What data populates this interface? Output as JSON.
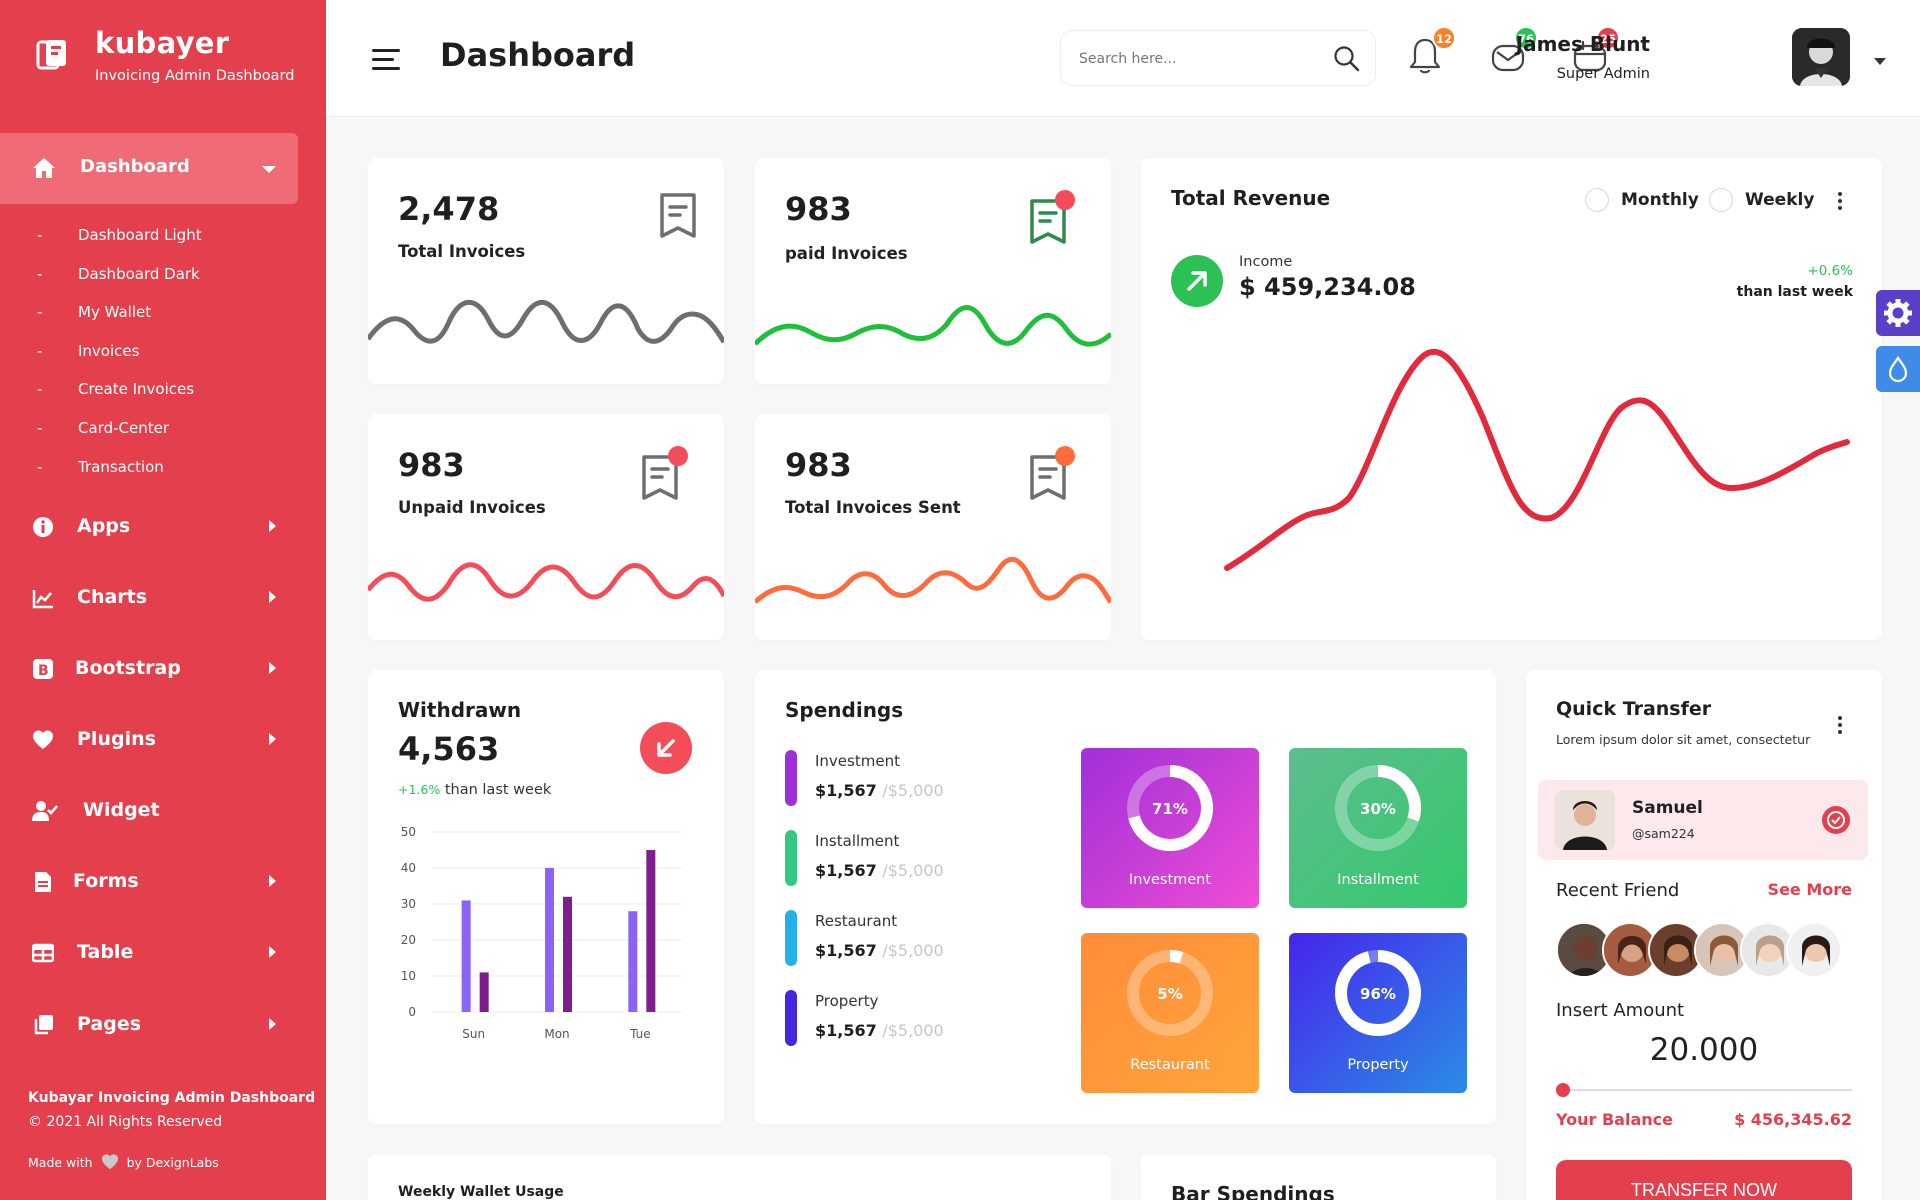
{
  "brand": {
    "name": "kubayer",
    "tagline": "Invoicing Admin Dashboard"
  },
  "sidebar": {
    "active": {
      "label": "Dashboard",
      "icon": "home-icon"
    },
    "subitems": [
      "Dashboard Light",
      "Dashboard Dark",
      "My Wallet",
      "Invoices",
      "Create Invoices",
      "Card-Center",
      "Transaction"
    ],
    "items": [
      {
        "label": "Apps",
        "icon": "info-icon"
      },
      {
        "label": "Charts",
        "icon": "line-chart-icon"
      },
      {
        "label": "Bootstrap",
        "icon": "bootstrap-icon"
      },
      {
        "label": "Plugins",
        "icon": "heart-icon"
      },
      {
        "label": "Widget",
        "icon": "user-check-icon"
      },
      {
        "label": "Forms",
        "icon": "file-icon"
      },
      {
        "label": "Table",
        "icon": "table-icon"
      },
      {
        "label": "Pages",
        "icon": "copy-icon"
      }
    ],
    "footer": {
      "title": "Kubayar Invoicing Admin Dashboard",
      "copyright": "© 2021 All Rights Reserved",
      "made_with": "Made with",
      "by": "by DexignLabs"
    }
  },
  "header": {
    "title": "Dashboard",
    "search_placeholder": "Search here...",
    "notifications": {
      "bell": "12",
      "mail": "76",
      "calendar": "25"
    },
    "badge_colors": {
      "bell": "#fe8024",
      "mail": "#2bc155",
      "calendar": "#e43f4c"
    },
    "user": {
      "name": "James Blunt",
      "role": "Super Admin"
    }
  },
  "stats": [
    {
      "value": "2,478",
      "label": "Total Invoices",
      "color": "#6e6e6e"
    },
    {
      "value": "983",
      "label": "paid Invoices",
      "color": "#2bc155"
    },
    {
      "value": "983",
      "label": "Unpaid Invoices",
      "color": "#f24d58"
    },
    {
      "value": "983",
      "label": "Total Invoices Sent",
      "color": "#fe6b3d"
    }
  ],
  "revenue": {
    "title": "Total Revenue",
    "options": [
      "Monthly",
      "Weekly"
    ],
    "income_label": "Income",
    "income_value": "$ 459,234.08",
    "change": "+0.6%",
    "change_label": "than last week"
  },
  "withdrawn": {
    "title": "Withdrawn",
    "value": "4,563",
    "change": "+1.6%",
    "change_label": " than last week"
  },
  "chart_data": {
    "type": "bar",
    "categories": [
      "Sun",
      "Mon",
      "Tue"
    ],
    "series": [
      {
        "values": [
          31,
          40,
          28
        ],
        "color": "#8b63f6"
      },
      {
        "values": [
          11,
          32,
          45
        ],
        "color": "#7c1e8c"
      }
    ],
    "y_ticks": [
      0,
      10,
      20,
      30,
      40,
      50
    ],
    "ylim": [
      0,
      50
    ],
    "grid": true
  },
  "spendings": {
    "title": "Spendings",
    "items": [
      {
        "name": "Investment",
        "amount": "$1,567",
        "total": "/$5,000",
        "color": "#9f30d9"
      },
      {
        "name": "Installment",
        "amount": "$1,567",
        "total": "/$5,000",
        "color": "#33c985"
      },
      {
        "name": "Restaurant",
        "amount": "$1,567",
        "total": "/$5,000",
        "color": "#22b2e8"
      },
      {
        "name": "Property",
        "amount": "$1,567",
        "total": "/$5,000",
        "color": "#4328e0"
      }
    ],
    "tiles": [
      {
        "pct": "71%",
        "fraction": 0.71,
        "label": "Investment",
        "grad": [
          "#9f30d9",
          "#f04dd4"
        ]
      },
      {
        "pct": "30%",
        "fraction": 0.3,
        "label": "Installment",
        "grad": [
          "#5dbd8f",
          "#33c96b"
        ]
      },
      {
        "pct": "5%",
        "fraction": 0.05,
        "label": "Restaurant",
        "grad": [
          "#ff8c3a",
          "#ffa53a"
        ]
      },
      {
        "pct": "96%",
        "fraction": 0.96,
        "label": "Property",
        "grad": [
          "#4725ec",
          "#2a8ce6"
        ]
      }
    ]
  },
  "quick_transfer": {
    "title": "Quick Transfer",
    "desc": "Lorem ipsum dolor sit amet, consectetur",
    "contact": {
      "name": "Samuel",
      "handle": "@sam224"
    },
    "recent_friend": "Recent Friend",
    "see_more": "See More",
    "insert_amount": "Insert Amount",
    "amount": "20.000",
    "slider_fraction": 0.0,
    "balance_label": "Your Balance",
    "balance_value": "$ 456,345.62",
    "button": "TRANSFER NOW"
  },
  "bottom": {
    "weekly": "Weekly Wallet Usage",
    "bar_spendings": "Bar Spendings"
  }
}
